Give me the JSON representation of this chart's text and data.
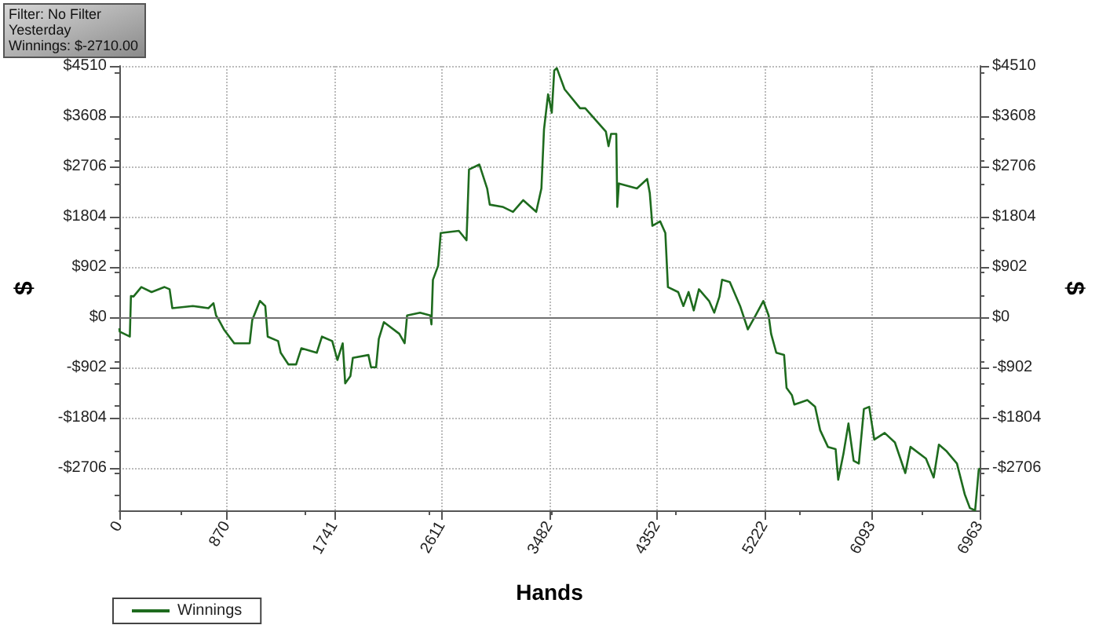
{
  "chart_data": {
    "type": "line",
    "xlabel": "Hands",
    "ylabel": "$",
    "y2label": "$",
    "annotations": [
      "Filter: No Filter",
      "Yesterday",
      "Winnings: $-2710.00"
    ],
    "x": [
      0,
      3,
      85,
      94,
      115,
      178,
      261,
      366,
      407,
      429,
      595,
      721,
      762,
      783,
      805,
      846,
      930,
      1055,
      1076,
      1138,
      1181,
      1201,
      1285,
      1306,
      1369,
      1431,
      1473,
      1598,
      1640,
      1723,
      1765,
      1808,
      1828,
      1870,
      1890,
      2016,
      2037,
      2078,
      2100,
      2141,
      2266,
      2309,
      2329,
      2434,
      2517,
      2526,
      2538,
      2580,
      2601,
      2748,
      2810,
      2830,
      2914,
      2977,
      2998,
      3102,
      3186,
      3269,
      3374,
      3416,
      3437,
      3470,
      3478,
      3500,
      3520,
      3541,
      3604,
      3729,
      3771,
      3855,
      3938,
      3959,
      3980,
      4022,
      4030,
      4043,
      4189,
      4272,
      4293,
      4314,
      4377,
      4419,
      4440,
      4523,
      4565,
      4607,
      4649,
      4691,
      4773,
      4815,
      4857,
      4878,
      4941,
      5024,
      5087,
      5149,
      5212,
      5255,
      5275,
      5317,
      5380,
      5400,
      5443,
      5463,
      5568,
      5631,
      5672,
      5735,
      5797,
      5818,
      5860,
      5901,
      5943,
      5985,
      6026,
      6069,
      6110,
      6194,
      6277,
      6361,
      6403,
      6528,
      6591,
      6633,
      6696,
      6779,
      6842,
      6884,
      6926,
      6938,
      6955,
      6963
    ],
    "series": [
      {
        "name": "Winnings",
        "color": "#1e6b1e",
        "values": [
          -200,
          -260,
          -350,
          380,
          370,
          540,
          450,
          540,
          500,
          160,
          200,
          160,
          250,
          30,
          -50,
          -220,
          -470,
          -470,
          -50,
          290,
          200,
          -350,
          -430,
          -640,
          -850,
          -850,
          -560,
          -640,
          -350,
          -430,
          -770,
          -470,
          -1190,
          -1060,
          -730,
          -680,
          -900,
          -900,
          -390,
          -90,
          -300,
          -470,
          30,
          80,
          30,
          -130,
          670,
          920,
          1510,
          1550,
          1380,
          2650,
          2740,
          2310,
          2020,
          1980,
          1890,
          2100,
          1890,
          2310,
          3370,
          4000,
          3920,
          3670,
          4430,
          4470,
          4090,
          3750,
          3750,
          3540,
          3330,
          3070,
          3290,
          3290,
          1980,
          2400,
          2310,
          2480,
          2230,
          1640,
          1720,
          1510,
          540,
          450,
          200,
          450,
          120,
          500,
          290,
          80,
          370,
          670,
          630,
          200,
          -220,
          30,
          290,
          30,
          -300,
          -640,
          -680,
          -1270,
          -1400,
          -1570,
          -1490,
          -1610,
          -2030,
          -2330,
          -2370,
          -2920,
          -2460,
          -1910,
          -2580,
          -2630,
          -1650,
          -1610,
          -2200,
          -2080,
          -2250,
          -2800,
          -2330,
          -2540,
          -2880,
          -2290,
          -2410,
          -2630,
          -3180,
          -3430,
          -3470,
          -3180,
          -2750,
          -2710
        ]
      }
    ],
    "xlim": [
      0,
      6963
    ],
    "xticks": [
      0,
      870,
      1741,
      2611,
      3482,
      4352,
      5222,
      6093,
      6963
    ],
    "ylim": [
      -3470,
      4510
    ],
    "yticks": [
      {
        "value": -2706,
        "label": "-$2706"
      },
      {
        "value": -1804,
        "label": "-$1804"
      },
      {
        "value": -902,
        "label": "-$902"
      },
      {
        "value": 0,
        "label": "$0"
      },
      {
        "value": 902,
        "label": "$902"
      },
      {
        "value": 1804,
        "label": "$1804"
      },
      {
        "value": 2706,
        "label": "$2706"
      },
      {
        "value": 3608,
        "label": "$3608"
      },
      {
        "value": 4510,
        "label": "$4510"
      }
    ],
    "y2lim": [
      -3470,
      4510
    ],
    "y2ticks": [
      {
        "value": -2706,
        "label": "-$2706"
      },
      {
        "value": -1804,
        "label": "-$1804"
      },
      {
        "value": -902,
        "label": "-$902"
      },
      {
        "value": 0,
        "label": "$0"
      },
      {
        "value": 902,
        "label": "$902"
      },
      {
        "value": 1804,
        "label": "$1804"
      },
      {
        "value": 2706,
        "label": "$2706"
      },
      {
        "value": 3608,
        "label": "$3608"
      },
      {
        "value": 4510,
        "label": "$4510"
      }
    ],
    "ref_lines": [
      {
        "axis": "y",
        "value": 0,
        "color": "#707070"
      }
    ],
    "grid": true,
    "legend": "bottom left",
    "marker": "none",
    "line_style": "solid"
  }
}
